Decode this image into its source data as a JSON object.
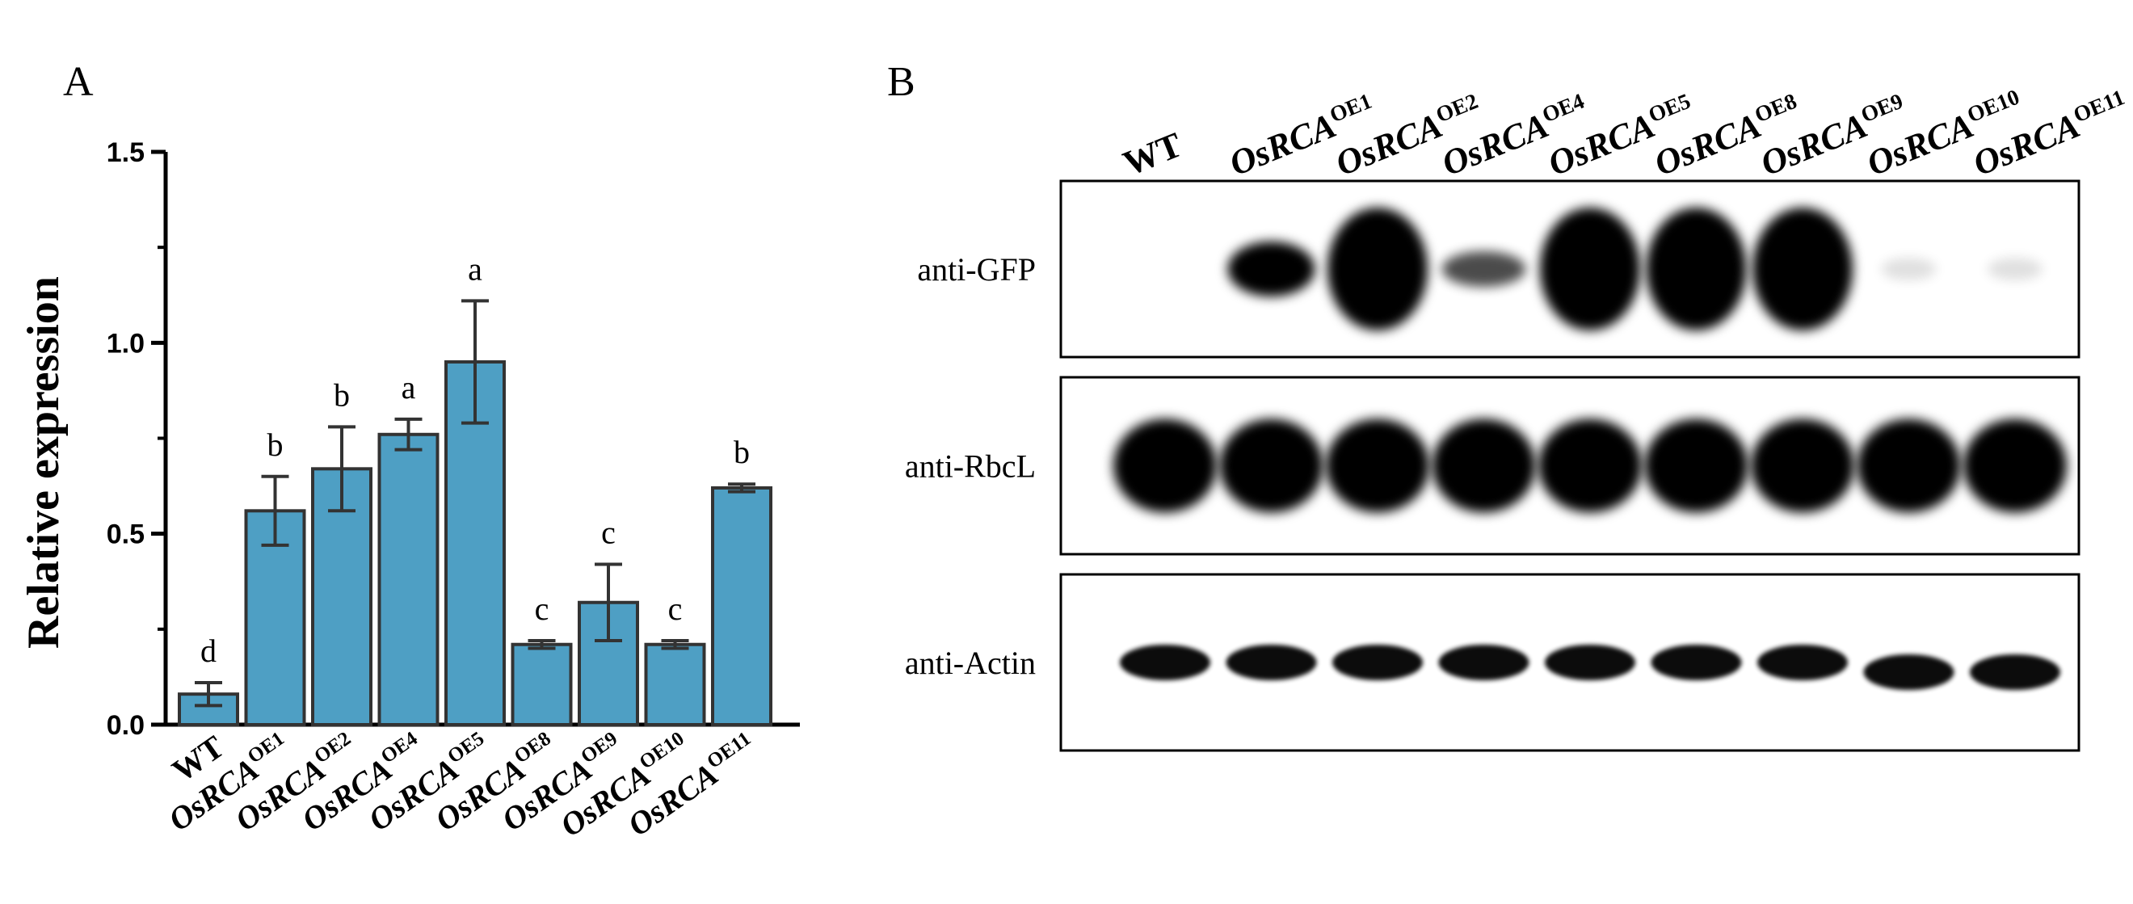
{
  "figure": {
    "panel_a_letter": "A",
    "panel_b_letter": "B"
  },
  "chart_data": {
    "type": "bar",
    "ylabel": "Relative expression",
    "xlabel": "",
    "ylim": [
      0,
      1.5
    ],
    "yticks": [
      "0.0",
      "0.5",
      "1.0",
      "1.5"
    ],
    "categories": [
      {
        "base": "WT",
        "sup": ""
      },
      {
        "base": "OsRCA",
        "sup": "OE1"
      },
      {
        "base": "OsRCA",
        "sup": "OE2"
      },
      {
        "base": "OsRCA",
        "sup": "OE4"
      },
      {
        "base": "OsRCA",
        "sup": "OE5"
      },
      {
        "base": "OsRCA",
        "sup": "OE8"
      },
      {
        "base": "OsRCA",
        "sup": "OE9"
      },
      {
        "base": "OsRCA",
        "sup": "OE10"
      },
      {
        "base": "OsRCA",
        "sup": "OE11"
      }
    ],
    "values": [
      0.08,
      0.56,
      0.67,
      0.76,
      0.95,
      0.21,
      0.32,
      0.21,
      0.62
    ],
    "errors": [
      0.03,
      0.09,
      0.11,
      0.04,
      0.16,
      0.01,
      0.1,
      0.01,
      0.01
    ],
    "significance": [
      "d",
      "b",
      "b",
      "a",
      "a",
      "c",
      "c",
      "c",
      "b"
    ],
    "bar_color": "#4e9fc4",
    "edge_color": "#333333",
    "grid": false,
    "legend": "none"
  },
  "blot": {
    "lanes": [
      {
        "base": "WT",
        "sup": ""
      },
      {
        "base": "OsRCA",
        "sup": "OE1"
      },
      {
        "base": "OsRCA",
        "sup": "OE2"
      },
      {
        "base": "OsRCA",
        "sup": "OE4"
      },
      {
        "base": "OsRCA",
        "sup": "OE5"
      },
      {
        "base": "OsRCA",
        "sup": "OE8"
      },
      {
        "base": "OsRCA",
        "sup": "OE9"
      },
      {
        "base": "OsRCA",
        "sup": "OE10"
      },
      {
        "base": "OsRCA",
        "sup": "OE11"
      }
    ],
    "rows": [
      {
        "label": "anti-GFP",
        "intensity": [
          0.0,
          0.85,
          1.0,
          0.55,
          1.0,
          1.0,
          1.0,
          0.08,
          0.06
        ]
      },
      {
        "label": "anti-RbcL",
        "intensity": [
          1.0,
          1.0,
          1.0,
          1.0,
          1.0,
          1.0,
          1.0,
          1.0,
          1.0
        ]
      },
      {
        "label": "anti-Actin",
        "intensity": [
          0.9,
          0.9,
          0.9,
          0.85,
          0.88,
          0.88,
          0.9,
          0.92,
          0.92
        ]
      }
    ],
    "band_color": "#000000"
  }
}
